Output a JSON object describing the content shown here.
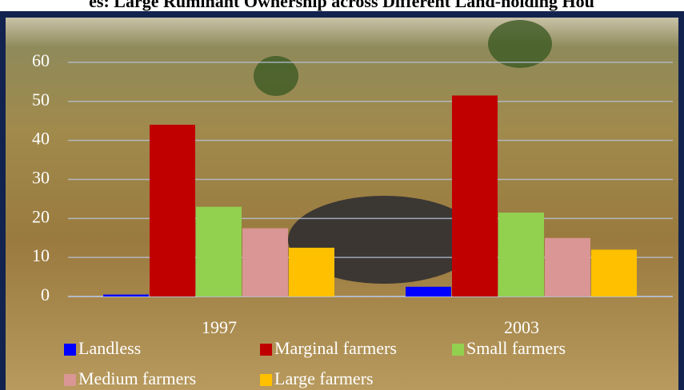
{
  "chart_data": {
    "type": "bar",
    "title": "es: Large Ruminant Ownership across Different Land-holding Hou",
    "categories": [
      "1997",
      "2003"
    ],
    "series": [
      {
        "name": "Landless",
        "color": "#0000ff",
        "values": [
          0.5,
          2.5
        ]
      },
      {
        "name": "Marginal farmers",
        "color": "#c00000",
        "values": [
          44,
          51.5
        ]
      },
      {
        "name": "Small farmers",
        "color": "#92d050",
        "values": [
          23,
          21.5
        ]
      },
      {
        "name": "Medium farmers",
        "color": "#d99694",
        "values": [
          17.5,
          15
        ]
      },
      {
        "name": "Large farmers",
        "color": "#ffc000",
        "values": [
          12.5,
          12
        ]
      }
    ],
    "ylim": [
      0,
      60
    ],
    "yticks": [
      0,
      10,
      20,
      30,
      40,
      50,
      60
    ],
    "grid": true
  }
}
